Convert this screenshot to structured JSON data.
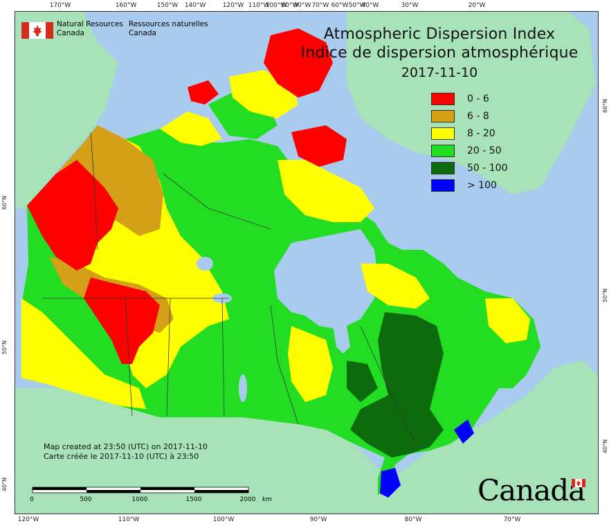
{
  "map": {
    "title_en": "Atmospheric Dispersion Index",
    "title_fr": "Indice de dispersion atmosphérique",
    "date": "2017-11-10",
    "agency": {
      "en_line1": "Natural Resources",
      "en_line2": "Canada",
      "fr_line1": "Ressources naturelles",
      "fr_line2": "Canada"
    },
    "credit_en": "Map created at 23:50 (UTC) on 2017-11-10",
    "credit_fr": "Carte créée le 2017-11-10 (UTC) à 23:50",
    "wordmark": "Canada",
    "legend": [
      {
        "label": "0 - 6",
        "color": "#ff0000"
      },
      {
        "label": "6 - 8",
        "color": "#d4a017"
      },
      {
        "label": "8 - 20",
        "color": "#ffff00"
      },
      {
        "label": "20 - 50",
        "color": "#22dd22"
      },
      {
        "label": "50 - 100",
        "color": "#0d6b0d"
      },
      {
        "label": "> 100",
        "color": "#0000ff"
      }
    ],
    "scale": {
      "labels": [
        "0",
        "500",
        "1000",
        "1500",
        "2000"
      ],
      "unit": "km"
    },
    "top_ticks": [
      "170°W",
      "160°W",
      "150°W",
      "140°W",
      "120°W",
      "110°W",
      "100°W",
      "90°W",
      "80°W",
      "70°W",
      "60°W",
      "50°W",
      "40°W",
      "30°W",
      "20°W"
    ],
    "bottom_ticks": [
      "120°W",
      "110°W",
      "100°W",
      "90°W",
      "80°W",
      "70°W"
    ],
    "left_ticks": [
      "60°N",
      "50°N",
      "40°N"
    ],
    "right_ticks": [
      "60°N",
      "50°N",
      "40°N"
    ],
    "colors": {
      "water": "#a9cbee",
      "land_outside": "#a8e2b8",
      "border_line": "#333333"
    }
  }
}
